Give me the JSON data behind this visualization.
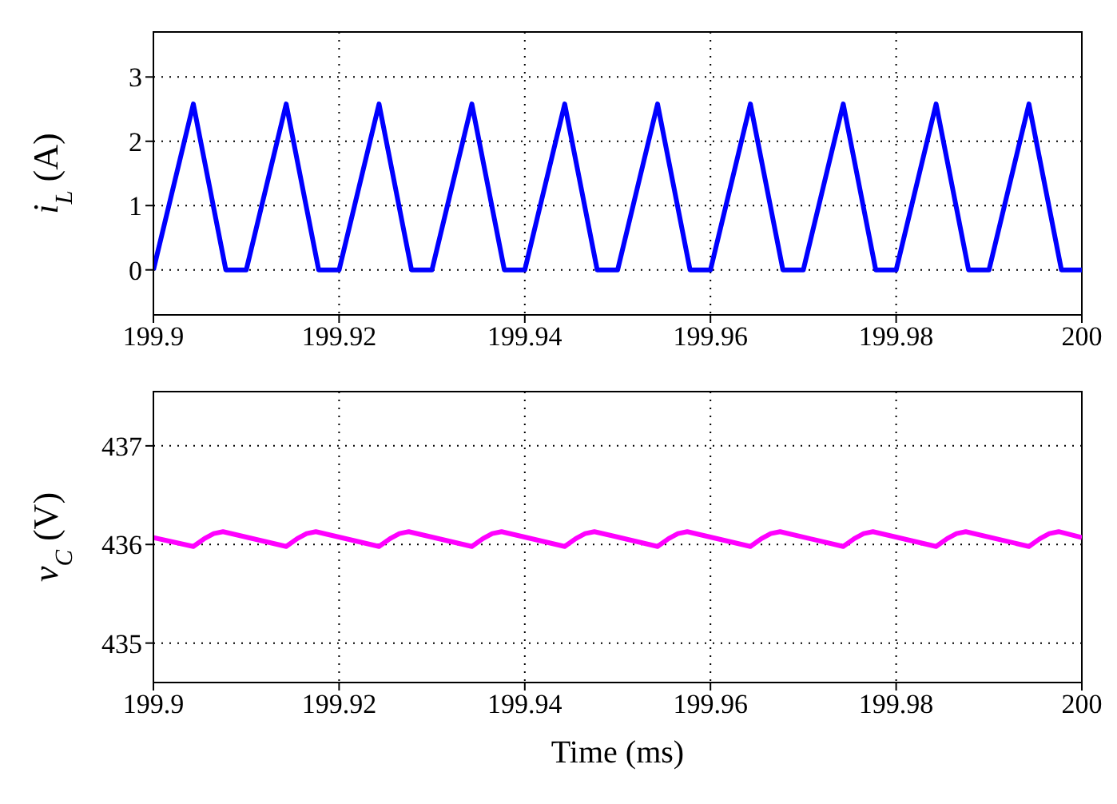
{
  "chart_data": [
    {
      "type": "line",
      "ylabel": "i$_{L}$ (A)",
      "xlim": [
        199.9,
        200
      ],
      "xticks": [
        199.9,
        199.92,
        199.94,
        199.96,
        199.98,
        200
      ],
      "ylim": [
        -0.7,
        3.7
      ],
      "yticks": [
        0,
        1,
        2,
        3
      ],
      "grid": true,
      "series": [
        {
          "color": "#0000ff",
          "x": [
            199.9,
            199.9043,
            199.9078,
            199.91,
            199.9143,
            199.9178,
            199.92,
            199.9243,
            199.9278,
            199.93,
            199.9343,
            199.9378,
            199.94,
            199.9443,
            199.9478,
            199.95,
            199.9543,
            199.9578,
            199.96,
            199.9643,
            199.9678,
            199.97,
            199.9743,
            199.9778,
            199.98,
            199.9843,
            199.9878,
            199.99,
            199.9943,
            199.9978,
            200
          ],
          "values": [
            0,
            2.58,
            0,
            0,
            2.58,
            0,
            0,
            2.58,
            0,
            0,
            2.58,
            0,
            0,
            2.58,
            0,
            0,
            2.58,
            0,
            0,
            2.58,
            0,
            0,
            2.58,
            0,
            0,
            2.58,
            0,
            0,
            2.58,
            0,
            0
          ]
        }
      ]
    },
    {
      "type": "line",
      "ylabel": "v$_{C}$ (V)",
      "xlabel": "Time (ms)",
      "xlim": [
        199.9,
        200
      ],
      "xticks": [
        199.9,
        199.92,
        199.94,
        199.96,
        199.98,
        200
      ],
      "ylim": [
        434.6,
        437.55
      ],
      "yticks": [
        435,
        436,
        437
      ],
      "grid": true,
      "series": [
        {
          "color": "#ff00ff",
          "x": [
            199.9,
            199.9043,
            199.9055,
            199.9065,
            199.9075,
            199.9143,
            199.9155,
            199.9165,
            199.9175,
            199.9243,
            199.9255,
            199.9265,
            199.9275,
            199.9343,
            199.9355,
            199.9365,
            199.9375,
            199.9443,
            199.9455,
            199.9465,
            199.9475,
            199.9543,
            199.9555,
            199.9565,
            199.9575,
            199.9643,
            199.9655,
            199.9665,
            199.9675,
            199.9743,
            199.9755,
            199.9765,
            199.9775,
            199.9843,
            199.9855,
            199.9865,
            199.9875,
            199.9943,
            199.9955,
            199.9965,
            199.9975,
            200
          ],
          "values": [
            436.07,
            435.98,
            436.06,
            436.11,
            436.13,
            435.98,
            436.06,
            436.11,
            436.13,
            435.98,
            436.06,
            436.11,
            436.13,
            435.98,
            436.06,
            436.11,
            436.13,
            435.98,
            436.06,
            436.11,
            436.13,
            435.98,
            436.06,
            436.11,
            436.13,
            435.98,
            436.06,
            436.11,
            436.13,
            435.98,
            436.06,
            436.11,
            436.13,
            435.98,
            436.06,
            436.11,
            436.13,
            435.98,
            436.06,
            436.11,
            436.13,
            436.07
          ]
        }
      ]
    }
  ]
}
